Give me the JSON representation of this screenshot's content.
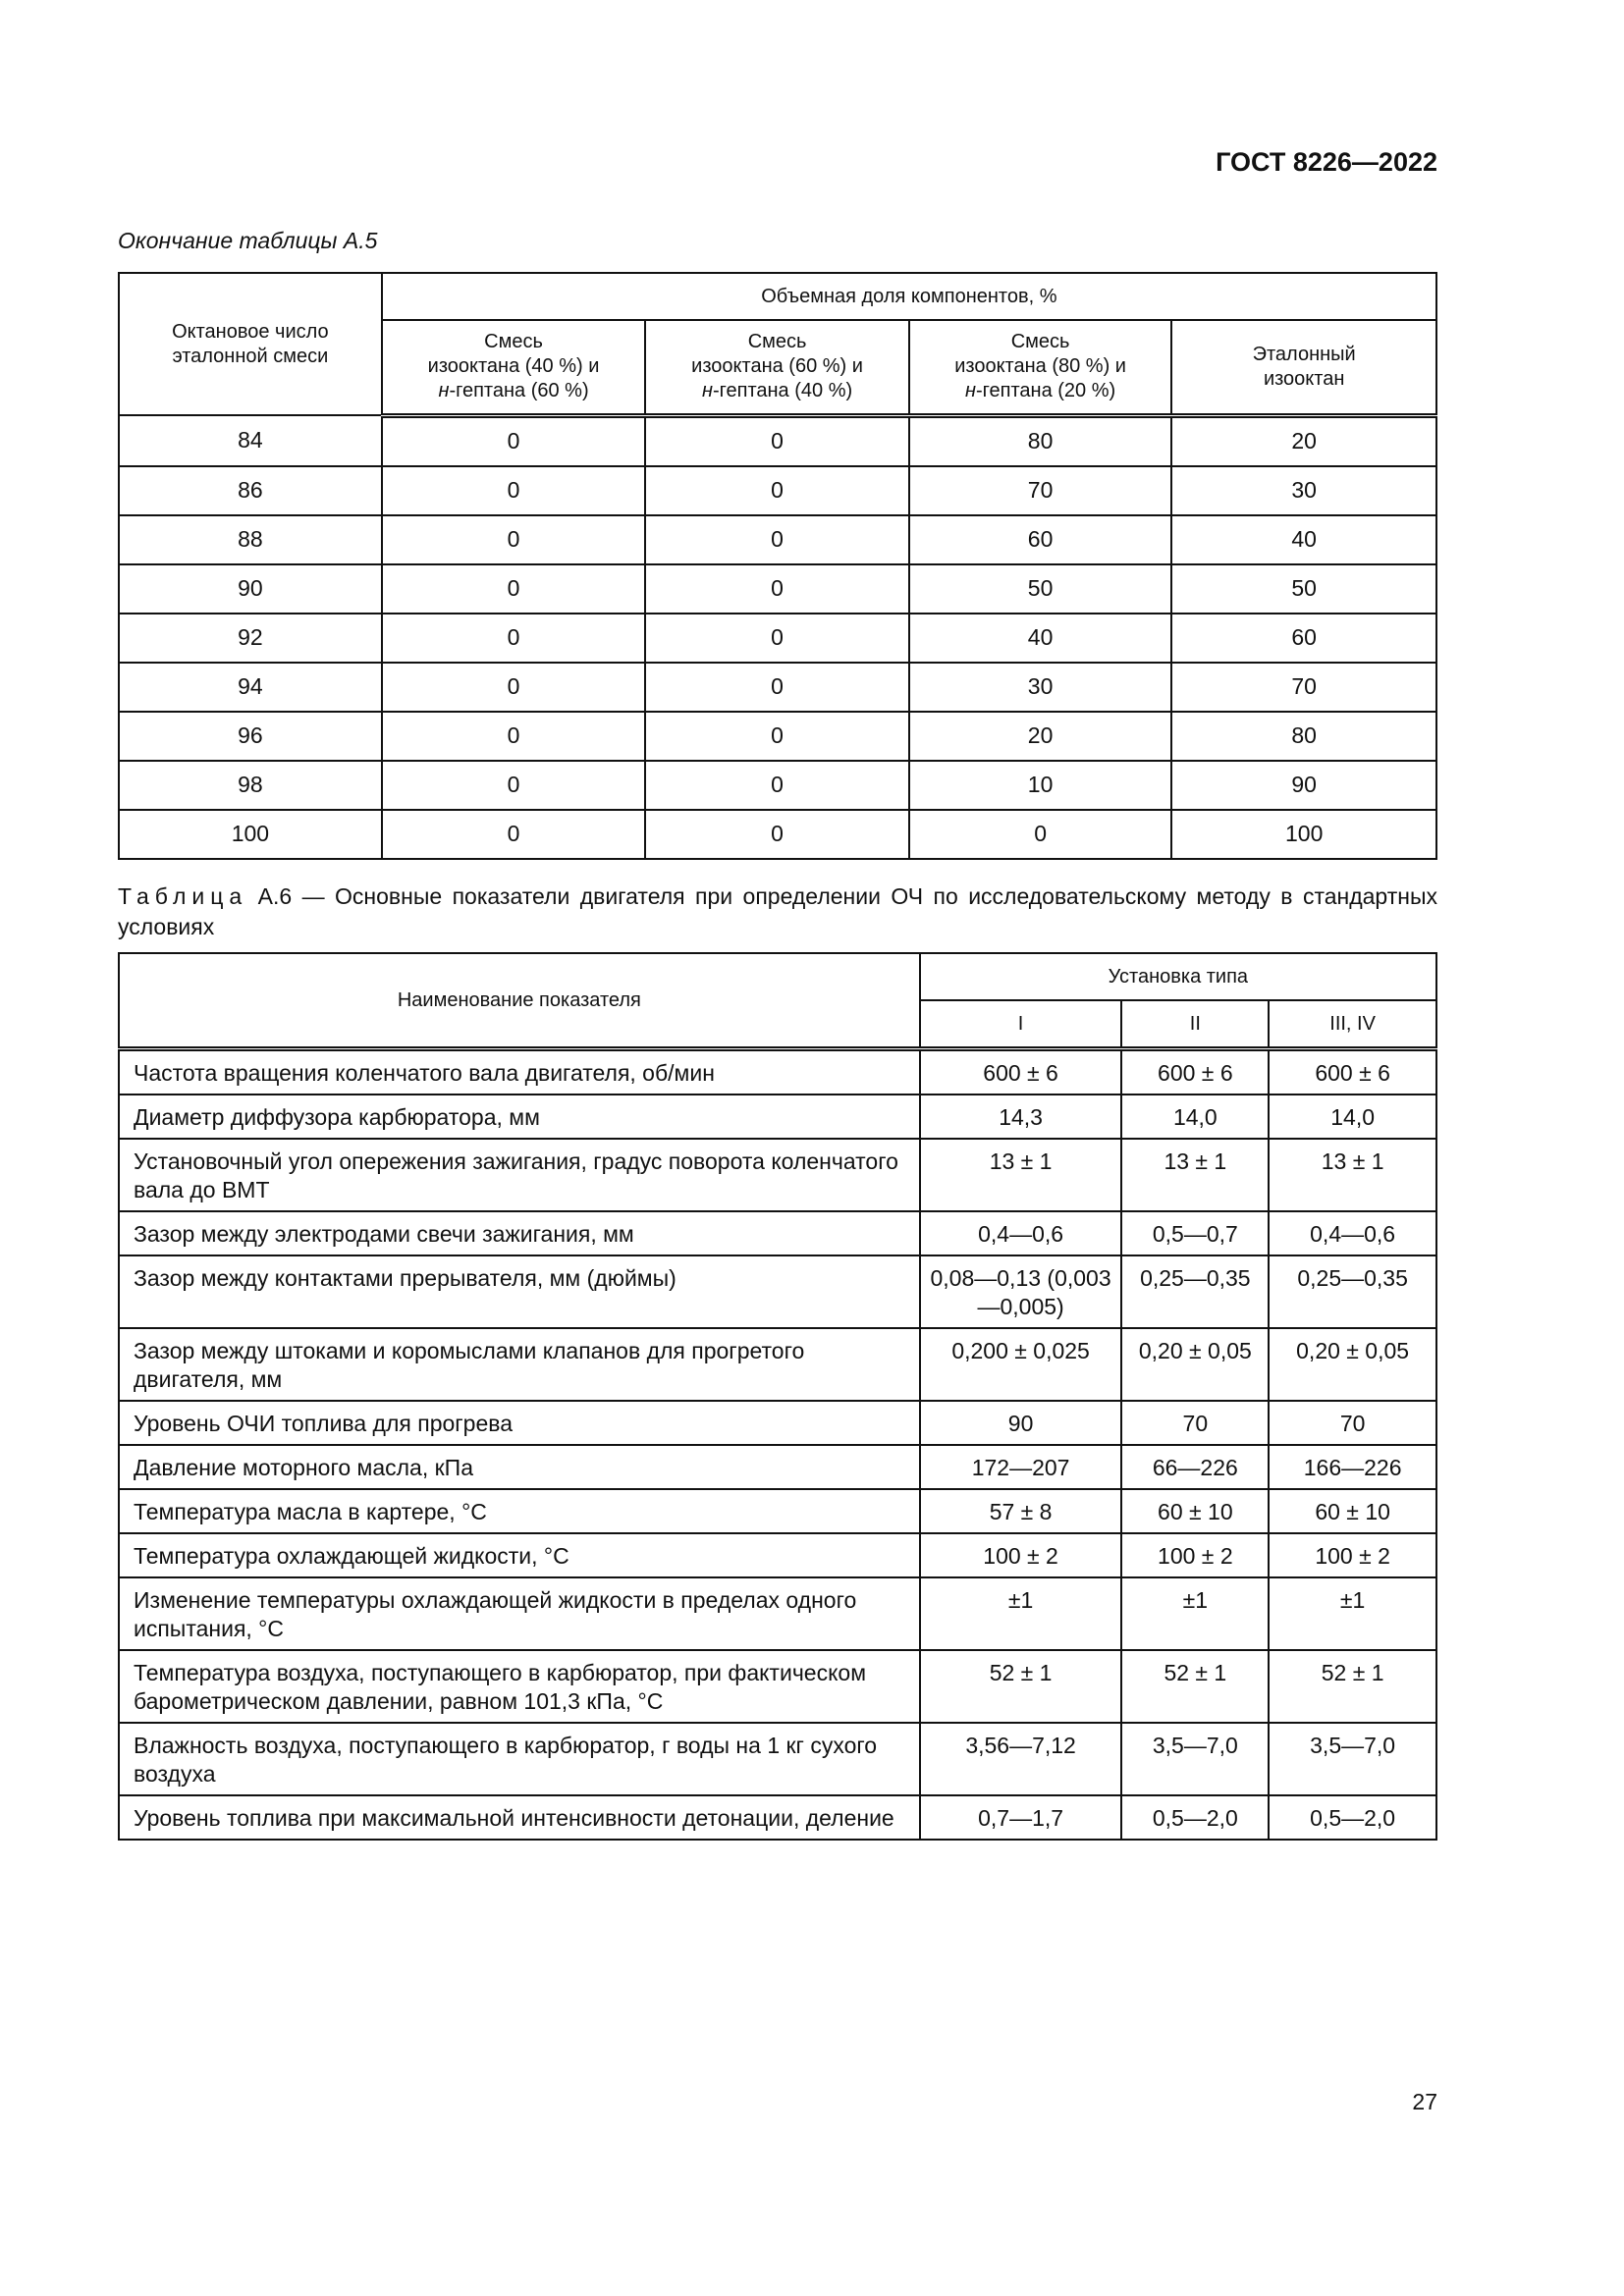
{
  "header": {
    "doc_id": "ГОСТ 8226—2022"
  },
  "table_a5": {
    "continuation": "Окончание таблицы А.5",
    "col0": "Октановое число эталонной смеси",
    "group": "Объемная доля компонентов, %",
    "cols": [
      {
        "l1": "Смесь",
        "l2": "изооктана (40 %) и",
        "l3i": "н",
        "l3": "-гептана (60 %)"
      },
      {
        "l1": "Смесь",
        "l2": "изооктана (60 %) и",
        "l3i": "н",
        "l3": "-гептана (40 %)"
      },
      {
        "l1": "Смесь",
        "l2": "изооктана (80 %) и",
        "l3i": "н",
        "l3": "-гептана (20 %)"
      }
    ],
    "col_last": "Эталонный изооктан",
    "rows": [
      [
        "84",
        "0",
        "0",
        "80",
        "20"
      ],
      [
        "86",
        "0",
        "0",
        "70",
        "30"
      ],
      [
        "88",
        "0",
        "0",
        "60",
        "40"
      ],
      [
        "90",
        "0",
        "0",
        "50",
        "50"
      ],
      [
        "92",
        "0",
        "0",
        "40",
        "60"
      ],
      [
        "94",
        "0",
        "0",
        "30",
        "70"
      ],
      [
        "96",
        "0",
        "0",
        "20",
        "80"
      ],
      [
        "98",
        "0",
        "0",
        "10",
        "90"
      ],
      [
        "100",
        "0",
        "0",
        "0",
        "100"
      ]
    ]
  },
  "table_a6": {
    "caption_prefix": "Таблица",
    "caption": "А.6 — Основные показатели двигателя при определении ОЧ по исследовательскому методу в стандартных условиях",
    "col_name": "Наименование показателя",
    "group": "Установка типа",
    "types": [
      "I",
      "II",
      "III, IV"
    ],
    "rows": [
      [
        "Частота вращения коленчатого вала двигателя, об/мин",
        "600 ± 6",
        "600 ± 6",
        "600 ± 6"
      ],
      [
        "Диаметр диффузора карбюратора, мм",
        "14,3",
        "14,0",
        "14,0"
      ],
      [
        "Установочный угол опережения зажигания, градус поворота коленчатого вала до ВМТ",
        "13 ± 1",
        "13 ± 1",
        "13 ± 1"
      ],
      [
        "Зазор между электродами свечи зажигания, мм",
        "0,4—0,6",
        "0,5—0,7",
        "0,4—0,6"
      ],
      [
        "Зазор между контактами прерывателя, мм (дюймы)",
        "0,08—0,13 (0,003—0,005)",
        "0,25—0,35",
        "0,25—0,35"
      ],
      [
        "Зазор между штоками и коромыслами клапанов для прогретого двигателя, мм",
        "0,200 ± 0,025",
        "0,20 ± 0,05",
        "0,20 ± 0,05"
      ],
      [
        "Уровень ОЧИ топлива для прогрева",
        "90",
        "70",
        "70"
      ],
      [
        "Давление моторного масла, кПа",
        "172—207",
        "66—226",
        "166—226"
      ],
      [
        "Температура масла в картере, °С",
        "57 ± 8",
        "60 ± 10",
        "60 ± 10"
      ],
      [
        "Температура охлаждающей жидкости, °С",
        "100 ± 2",
        "100 ± 2",
        "100 ± 2"
      ],
      [
        "Изменение температуры охлаждающей жидкости в пределах одного испытания, °С",
        "±1",
        "±1",
        "±1"
      ],
      [
        "Температура воздуха, поступающего в карбюратор, при фактическом барометрическом давлении, равном 101,3 кПа, °С",
        "52 ± 1",
        "52 ± 1",
        "52 ± 1"
      ],
      [
        "Влажность воздуха, поступающего в карбюратор, г воды на 1 кг сухого воздуха",
        "3,56—7,12",
        "3,5—7,0",
        "3,5—7,0"
      ],
      [
        "Уровень топлива при максимальной интенсивности детонации, деление",
        "0,7—1,7",
        "0,5—2,0",
        "0,5—2,0"
      ]
    ]
  },
  "footer": {
    "page_number": "27"
  }
}
